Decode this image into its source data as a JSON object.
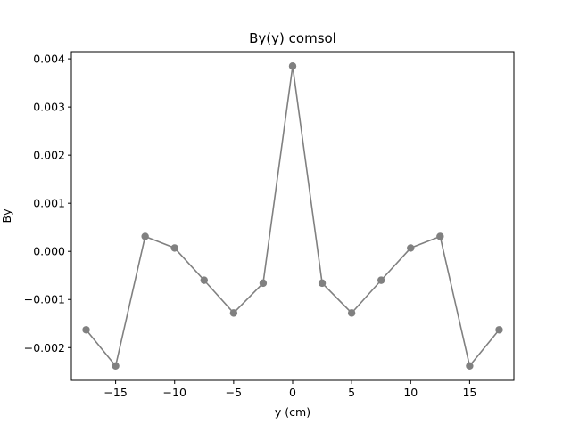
{
  "chart_data": {
    "type": "line",
    "title": "By(y) comsol",
    "xlabel": "y (cm)",
    "ylabel": "By",
    "xlim": [
      -18.75,
      18.75
    ],
    "ylim": [
      -0.00268,
      0.00415
    ],
    "xticks": [
      -15,
      -10,
      -5,
      0,
      5,
      10,
      15
    ],
    "xtick_labels": [
      "−15",
      "−10",
      "−5",
      "0",
      "5",
      "10",
      "15"
    ],
    "yticks": [
      -0.002,
      -0.001,
      0.0,
      0.001,
      0.002,
      0.003,
      0.004
    ],
    "ytick_labels": [
      "−0.002",
      "−0.001",
      "0.000",
      "0.001",
      "0.002",
      "0.003",
      "0.004"
    ],
    "grid": false,
    "series": [
      {
        "color": "#808080",
        "marker": "circle",
        "x": [
          -17.5,
          -15,
          -12.5,
          -10,
          -7.5,
          -5,
          -2.5,
          0,
          2.5,
          5,
          7.5,
          10,
          12.5,
          15,
          17.5
        ],
        "y": [
          -0.00163,
          -0.00238,
          0.00031,
          7e-05,
          -0.0006,
          -0.00128,
          -0.00066,
          0.00385,
          -0.00066,
          -0.00128,
          -0.0006,
          7e-05,
          0.00031,
          -0.00238,
          -0.00163
        ]
      }
    ]
  }
}
